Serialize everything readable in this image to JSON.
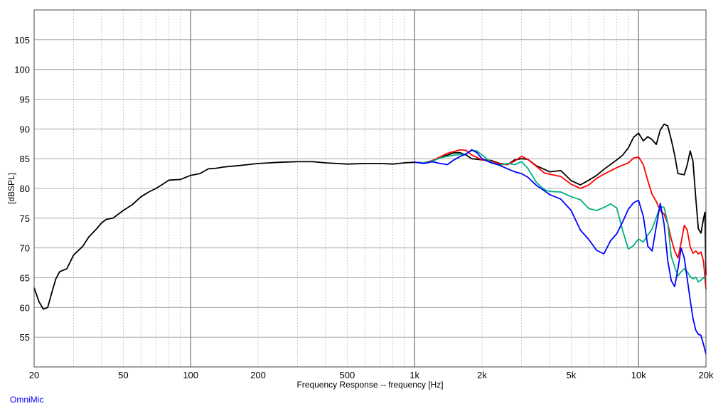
{
  "chart_data": {
    "type": "line",
    "xscale": "log",
    "xlim": [
      20,
      20000
    ],
    "ylim": [
      50,
      110
    ],
    "xlabel": "Frequency Response -- frequency [Hz]",
    "ylabel": "[dBSPL]",
    "x_ticks": [
      {
        "v": 20,
        "label": "20"
      },
      {
        "v": 50,
        "label": "50"
      },
      {
        "v": 100,
        "label": "100"
      },
      {
        "v": 200,
        "label": "200"
      },
      {
        "v": 500,
        "label": "500"
      },
      {
        "v": 1000,
        "label": "1k"
      },
      {
        "v": 2000,
        "label": "2k"
      },
      {
        "v": 5000,
        "label": "5k"
      },
      {
        "v": 10000,
        "label": "10k"
      },
      {
        "v": 20000,
        "label": "20k"
      }
    ],
    "y_ticks": [
      55,
      60,
      65,
      70,
      75,
      80,
      85,
      90,
      95,
      100,
      105
    ],
    "grid": true,
    "series": [
      {
        "color": "#000000",
        "points": [
          [
            20,
            63.3
          ],
          [
            21,
            61.0
          ],
          [
            22,
            59.7
          ],
          [
            23,
            60.0
          ],
          [
            24,
            62.5
          ],
          [
            25,
            64.8
          ],
          [
            26,
            66.0
          ],
          [
            28,
            66.5
          ],
          [
            30,
            68.8
          ],
          [
            33,
            70.3
          ],
          [
            35,
            71.8
          ],
          [
            38,
            73.2
          ],
          [
            40,
            74.2
          ],
          [
            42,
            74.8
          ],
          [
            45,
            75.0
          ],
          [
            48,
            75.8
          ],
          [
            50,
            76.3
          ],
          [
            55,
            77.3
          ],
          [
            60,
            78.6
          ],
          [
            65,
            79.4
          ],
          [
            70,
            80.0
          ],
          [
            75,
            80.7
          ],
          [
            80,
            81.4
          ],
          [
            90,
            81.5
          ],
          [
            100,
            82.2
          ],
          [
            110,
            82.5
          ],
          [
            120,
            83.3
          ],
          [
            130,
            83.4
          ],
          [
            140,
            83.6
          ],
          [
            160,
            83.8
          ],
          [
            180,
            84.0
          ],
          [
            200,
            84.2
          ],
          [
            250,
            84.4
          ],
          [
            300,
            84.5
          ],
          [
            350,
            84.5
          ],
          [
            400,
            84.3
          ],
          [
            500,
            84.1
          ],
          [
            600,
            84.2
          ],
          [
            700,
            84.2
          ],
          [
            800,
            84.1
          ],
          [
            900,
            84.3
          ],
          [
            1000,
            84.4
          ],
          [
            1100,
            84.3
          ],
          [
            1200,
            84.6
          ],
          [
            1300,
            85.2
          ],
          [
            1400,
            85.6
          ],
          [
            1500,
            86.0
          ],
          [
            1600,
            86.0
          ],
          [
            1700,
            85.6
          ],
          [
            1800,
            85.0
          ],
          [
            2000,
            84.8
          ],
          [
            2200,
            84.7
          ],
          [
            2400,
            84.2
          ],
          [
            2600,
            84.0
          ],
          [
            2800,
            84.8
          ],
          [
            3000,
            85.0
          ],
          [
            3200,
            84.9
          ],
          [
            3500,
            83.8
          ],
          [
            3800,
            83.2
          ],
          [
            4000,
            82.8
          ],
          [
            4500,
            83.0
          ],
          [
            5000,
            81.3
          ],
          [
            5500,
            80.6
          ],
          [
            6000,
            81.4
          ],
          [
            6500,
            82.2
          ],
          [
            7000,
            83.2
          ],
          [
            8000,
            84.8
          ],
          [
            8500,
            85.6
          ],
          [
            9000,
            86.8
          ],
          [
            9500,
            88.6
          ],
          [
            10000,
            89.3
          ],
          [
            10500,
            88.0
          ],
          [
            11000,
            88.7
          ],
          [
            11500,
            88.2
          ],
          [
            12000,
            87.4
          ],
          [
            12500,
            89.8
          ],
          [
            13000,
            90.8
          ],
          [
            13500,
            90.5
          ],
          [
            14000,
            88.2
          ],
          [
            14500,
            85.6
          ],
          [
            15000,
            82.5
          ],
          [
            16000,
            82.3
          ],
          [
            16500,
            84.0
          ],
          [
            17000,
            86.3
          ],
          [
            17500,
            84.6
          ],
          [
            18000,
            78.5
          ],
          [
            18500,
            73.2
          ],
          [
            19000,
            72.5
          ],
          [
            19500,
            74.9
          ],
          [
            19800,
            76.0
          ],
          [
            20000,
            65.4
          ]
        ]
      },
      {
        "color": "#ff0000",
        "points": [
          [
            1000,
            84.4
          ],
          [
            1100,
            84.3
          ],
          [
            1200,
            84.7
          ],
          [
            1300,
            85.3
          ],
          [
            1400,
            85.9
          ],
          [
            1500,
            86.2
          ],
          [
            1600,
            86.5
          ],
          [
            1700,
            86.4
          ],
          [
            1800,
            85.6
          ],
          [
            2000,
            84.8
          ],
          [
            2200,
            84.6
          ],
          [
            2400,
            84.1
          ],
          [
            2600,
            84.0
          ],
          [
            2800,
            84.6
          ],
          [
            3000,
            85.4
          ],
          [
            3200,
            84.9
          ],
          [
            3500,
            83.7
          ],
          [
            3800,
            82.6
          ],
          [
            4000,
            82.4
          ],
          [
            4500,
            82.0
          ],
          [
            5000,
            80.7
          ],
          [
            5500,
            80.0
          ],
          [
            6000,
            80.6
          ],
          [
            6500,
            81.7
          ],
          [
            7000,
            82.4
          ],
          [
            8000,
            83.5
          ],
          [
            9000,
            84.3
          ],
          [
            9500,
            85.1
          ],
          [
            10000,
            85.3
          ],
          [
            10500,
            84.0
          ],
          [
            11000,
            81.3
          ],
          [
            11500,
            79.0
          ],
          [
            12000,
            77.8
          ],
          [
            12500,
            76.3
          ],
          [
            13000,
            75.7
          ],
          [
            13500,
            74.1
          ],
          [
            14000,
            71.5
          ],
          [
            14500,
            69.5
          ],
          [
            15000,
            68.3
          ],
          [
            15500,
            70.9
          ],
          [
            16000,
            73.8
          ],
          [
            16500,
            73.0
          ],
          [
            17000,
            70.2
          ],
          [
            17500,
            69.1
          ],
          [
            18000,
            69.5
          ],
          [
            18500,
            69.0
          ],
          [
            19000,
            69.3
          ],
          [
            19500,
            67.8
          ],
          [
            20000,
            63.1
          ]
        ]
      },
      {
        "color": "#00b080",
        "points": [
          [
            1000,
            84.4
          ],
          [
            1100,
            84.3
          ],
          [
            1200,
            84.6
          ],
          [
            1300,
            85.1
          ],
          [
            1400,
            85.4
          ],
          [
            1500,
            85.6
          ],
          [
            1600,
            85.7
          ],
          [
            1700,
            85.8
          ],
          [
            1800,
            86.4
          ],
          [
            1900,
            86.3
          ],
          [
            2000,
            85.6
          ],
          [
            2200,
            84.4
          ],
          [
            2400,
            83.9
          ],
          [
            2600,
            84.2
          ],
          [
            2800,
            84.0
          ],
          [
            3000,
            84.5
          ],
          [
            3200,
            83.4
          ],
          [
            3500,
            81.0
          ],
          [
            3800,
            79.8
          ],
          [
            4000,
            79.5
          ],
          [
            4500,
            79.4
          ],
          [
            5000,
            78.6
          ],
          [
            5500,
            78.1
          ],
          [
            6000,
            76.6
          ],
          [
            6500,
            76.3
          ],
          [
            7000,
            76.8
          ],
          [
            7500,
            77.4
          ],
          [
            8000,
            76.7
          ],
          [
            8500,
            72.9
          ],
          [
            9000,
            69.8
          ],
          [
            9500,
            70.4
          ],
          [
            10000,
            71.5
          ],
          [
            10500,
            71.0
          ],
          [
            11000,
            72.2
          ],
          [
            11500,
            73.2
          ],
          [
            12000,
            75.1
          ],
          [
            12500,
            77.0
          ],
          [
            13000,
            76.8
          ],
          [
            13500,
            74.2
          ],
          [
            14000,
            68.6
          ],
          [
            14500,
            66.8
          ],
          [
            15000,
            65.3
          ],
          [
            15500,
            66.0
          ],
          [
            16000,
            66.5
          ],
          [
            16500,
            66.0
          ],
          [
            17000,
            65.2
          ],
          [
            17500,
            64.8
          ],
          [
            18000,
            65.1
          ],
          [
            18500,
            64.3
          ],
          [
            19000,
            64.6
          ],
          [
            19500,
            65.0
          ],
          [
            20000,
            64.8
          ]
        ]
      },
      {
        "color": "#0000ff",
        "points": [
          [
            1000,
            84.4
          ],
          [
            1100,
            84.2
          ],
          [
            1200,
            84.5
          ],
          [
            1300,
            84.2
          ],
          [
            1400,
            84.0
          ],
          [
            1500,
            84.8
          ],
          [
            1600,
            85.4
          ],
          [
            1700,
            85.8
          ],
          [
            1800,
            86.5
          ],
          [
            1900,
            86.0
          ],
          [
            2000,
            85.0
          ],
          [
            2200,
            84.3
          ],
          [
            2400,
            83.9
          ],
          [
            2600,
            83.3
          ],
          [
            2800,
            82.8
          ],
          [
            3000,
            82.5
          ],
          [
            3200,
            81.9
          ],
          [
            3500,
            80.5
          ],
          [
            3800,
            79.6
          ],
          [
            4000,
            79.0
          ],
          [
            4500,
            78.2
          ],
          [
            5000,
            76.3
          ],
          [
            5500,
            73.0
          ],
          [
            6000,
            71.4
          ],
          [
            6500,
            69.6
          ],
          [
            7000,
            69.0
          ],
          [
            7500,
            71.2
          ],
          [
            8000,
            72.4
          ],
          [
            8500,
            74.4
          ],
          [
            9000,
            76.5
          ],
          [
            9500,
            77.6
          ],
          [
            10000,
            78.0
          ],
          [
            10500,
            75.3
          ],
          [
            11000,
            70.3
          ],
          [
            11500,
            69.5
          ],
          [
            12000,
            73.6
          ],
          [
            12500,
            77.5
          ],
          [
            13000,
            74.0
          ],
          [
            13500,
            67.9
          ],
          [
            14000,
            64.5
          ],
          [
            14500,
            63.5
          ],
          [
            15000,
            66.5
          ],
          [
            15500,
            70.0
          ],
          [
            16000,
            68.3
          ],
          [
            16500,
            64.8
          ],
          [
            17000,
            61.3
          ],
          [
            17500,
            58.2
          ],
          [
            18000,
            56.2
          ],
          [
            18500,
            55.5
          ],
          [
            19000,
            55.3
          ],
          [
            19500,
            53.8
          ],
          [
            20000,
            52.2
          ]
        ]
      }
    ]
  },
  "footer": {
    "brand": "OmniMic"
  }
}
